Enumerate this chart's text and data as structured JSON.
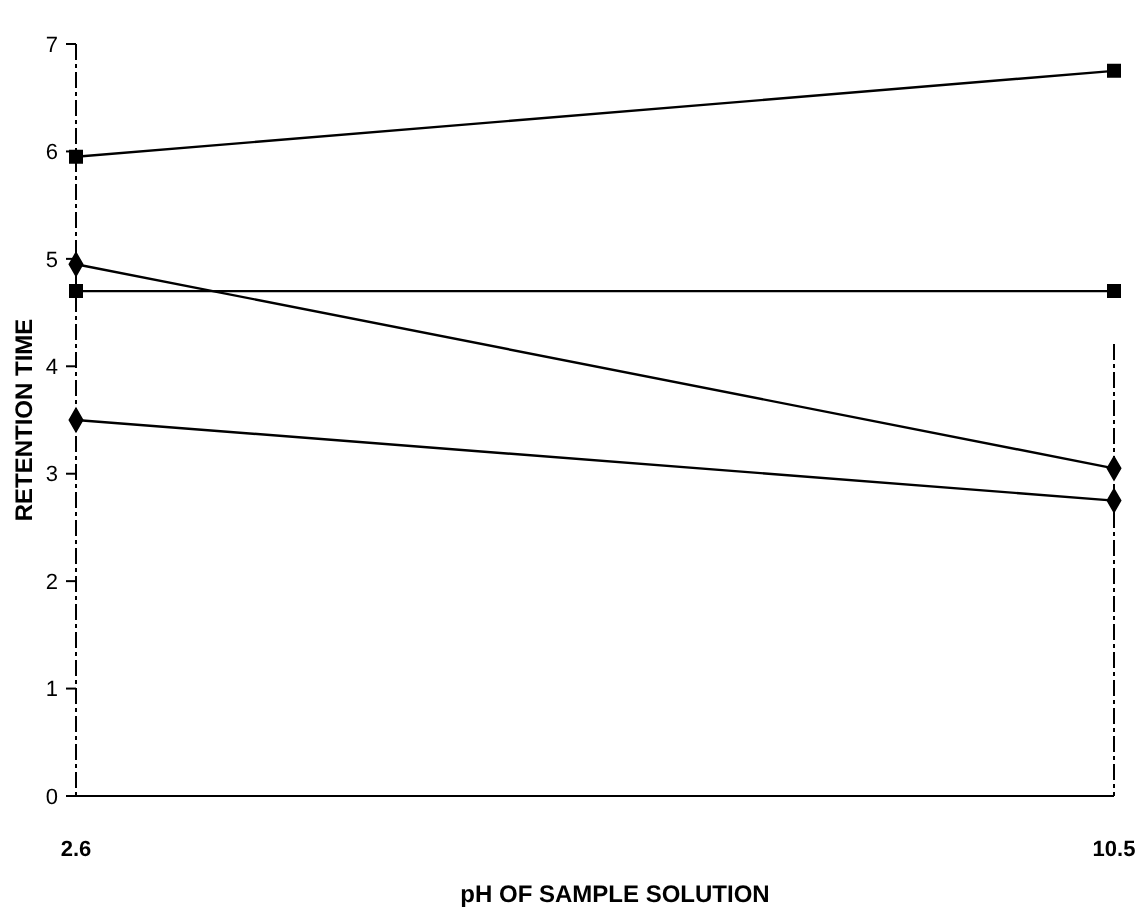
{
  "chart_data": {
    "type": "line",
    "xlabel": "pH OF SAMPLE SOLUTION",
    "ylabel": "RETENTION TIME",
    "x": [
      2.6,
      10.5
    ],
    "xlim": [
      2.6,
      10.5
    ],
    "xticks": [
      2.6,
      10.5
    ],
    "ylim": [
      0,
      7
    ],
    "yticks": [
      0,
      1,
      2,
      3,
      4,
      5,
      6,
      7
    ],
    "grid": false,
    "series": [
      {
        "color": "#000000",
        "marker": "square",
        "values": [
          5.95,
          6.75
        ]
      },
      {
        "color": "#000000",
        "marker": "square",
        "values": [
          4.7,
          4.7
        ]
      },
      {
        "color": "#000000",
        "marker": "diamond",
        "values": [
          4.95,
          3.05
        ]
      },
      {
        "color": "#000000",
        "marker": "diamond",
        "values": [
          3.5,
          2.75
        ]
      }
    ]
  }
}
